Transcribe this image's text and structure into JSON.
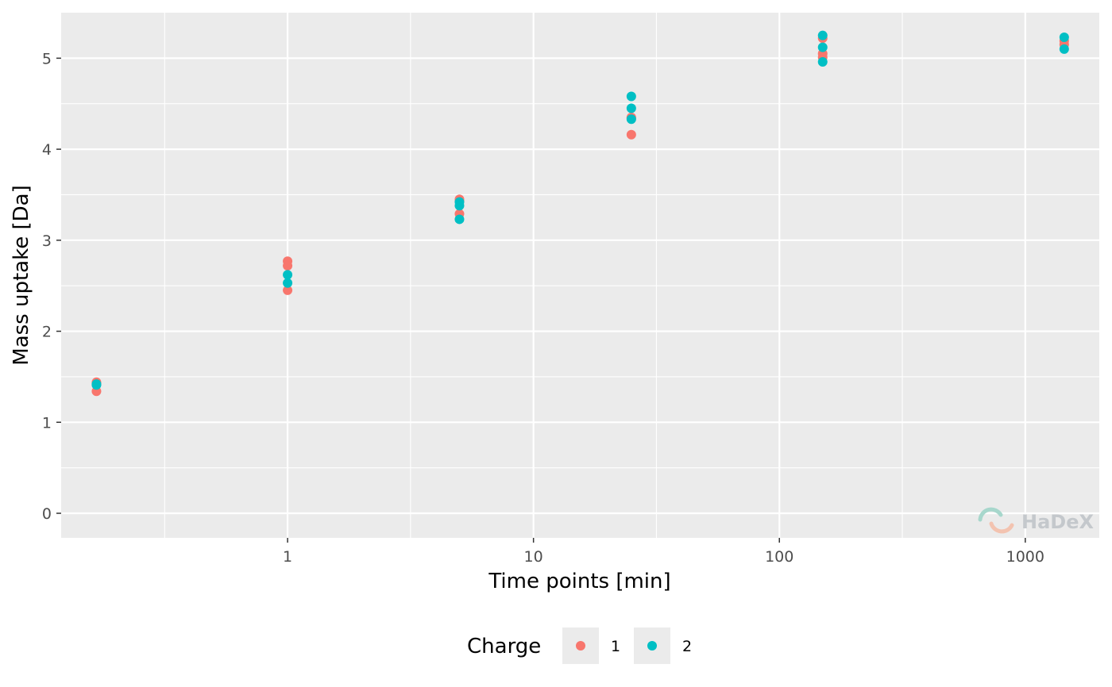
{
  "chart_data": {
    "type": "scatter",
    "title": "",
    "xlabel": "Time points [min]",
    "ylabel": "Mass uptake [Da]",
    "x_scale": "log10",
    "xlim": [
      0.12,
      2000
    ],
    "ylim": [
      -0.27,
      5.5
    ],
    "x_ticks": [
      1,
      10,
      100,
      1000
    ],
    "x_tick_labels": [
      "1",
      "10",
      "100",
      "1000"
    ],
    "y_ticks": [
      0,
      1,
      2,
      3,
      4,
      5
    ],
    "y_tick_labels": [
      "0",
      "1",
      "2",
      "3",
      "4",
      "5"
    ],
    "grid": true,
    "legend": {
      "title": "Charge",
      "position": "bottom"
    },
    "series": [
      {
        "name": "1",
        "color": "#F8766D",
        "points": [
          {
            "x": 0.167,
            "y": 1.44
          },
          {
            "x": 0.167,
            "y": 1.42
          },
          {
            "x": 0.167,
            "y": 1.34
          },
          {
            "x": 1,
            "y": 2.77
          },
          {
            "x": 1,
            "y": 2.72
          },
          {
            "x": 1,
            "y": 2.45
          },
          {
            "x": 5,
            "y": 3.45
          },
          {
            "x": 5,
            "y": 3.43
          },
          {
            "x": 5,
            "y": 3.29
          },
          {
            "x": 25,
            "y": 4.35
          },
          {
            "x": 25,
            "y": 4.34
          },
          {
            "x": 25,
            "y": 4.16
          },
          {
            "x": 150,
            "y": 5.22
          },
          {
            "x": 150,
            "y": 5.05
          },
          {
            "x": 150,
            "y": 5.01
          },
          {
            "x": 1440,
            "y": 5.19
          },
          {
            "x": 1440,
            "y": 5.15
          }
        ]
      },
      {
        "name": "2",
        "color": "#00BFC4",
        "points": [
          {
            "x": 0.167,
            "y": 1.42
          },
          {
            "x": 0.167,
            "y": 1.41
          },
          {
            "x": 1,
            "y": 2.62
          },
          {
            "x": 1,
            "y": 2.53
          },
          {
            "x": 5,
            "y": 3.42
          },
          {
            "x": 5,
            "y": 3.38
          },
          {
            "x": 5,
            "y": 3.23
          },
          {
            "x": 25,
            "y": 4.58
          },
          {
            "x": 25,
            "y": 4.45
          },
          {
            "x": 25,
            "y": 4.33
          },
          {
            "x": 150,
            "y": 5.25
          },
          {
            "x": 150,
            "y": 5.12
          },
          {
            "x": 150,
            "y": 4.96
          },
          {
            "x": 1440,
            "y": 5.23
          },
          {
            "x": 1440,
            "y": 5.1
          }
        ]
      }
    ]
  },
  "watermark": {
    "text": "HaDeX"
  }
}
